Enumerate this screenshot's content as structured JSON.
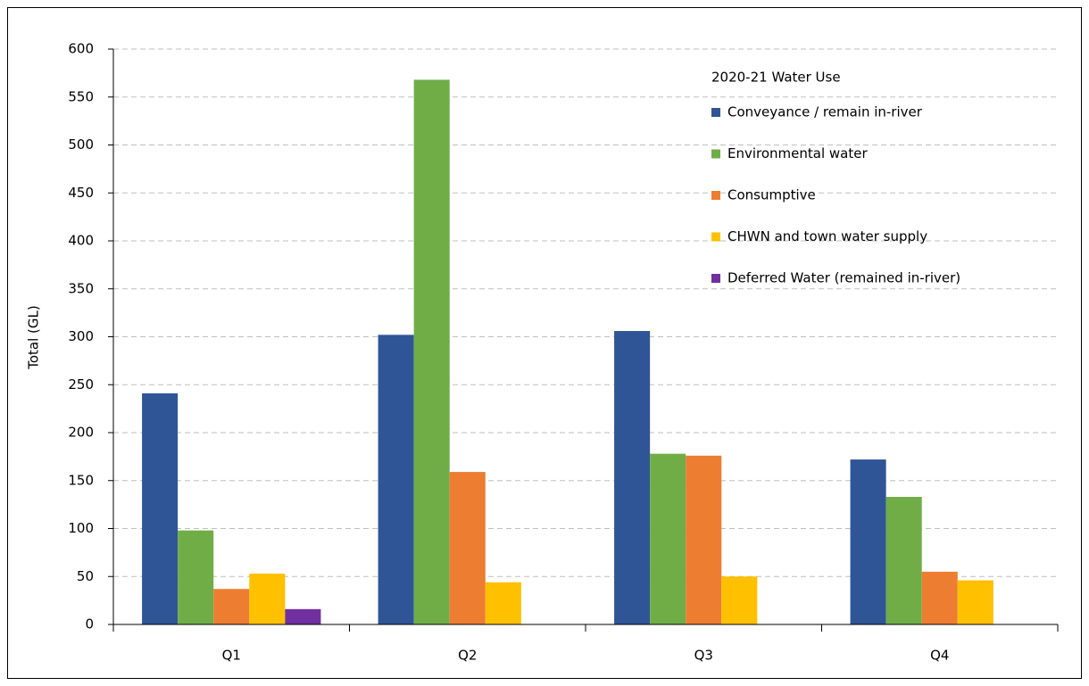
{
  "chart_data": {
    "type": "bar",
    "y_label": "Total (GL)",
    "legend_title": "2020-21 Water Use",
    "categories": [
      "Q1",
      "Q2",
      "Q3",
      "Q4"
    ],
    "series": [
      {
        "name": "Conveyance / remain in-river",
        "color": "#2f5597",
        "values": [
          241,
          302,
          306,
          172
        ]
      },
      {
        "name": "Environmental water",
        "color": "#70ad47",
        "values": [
          98,
          568,
          178,
          133
        ]
      },
      {
        "name": "Consumptive",
        "color": "#ed7d31",
        "values": [
          37,
          159,
          176,
          55
        ]
      },
      {
        "name": "CHWN and town water supply",
        "color": "#ffc000",
        "values": [
          53,
          44,
          50,
          46
        ]
      },
      {
        "name": "Deferred Water (remained in-river)",
        "color": "#7030a0",
        "values": [
          16,
          0,
          0,
          0
        ]
      }
    ],
    "ylim": [
      0,
      600
    ],
    "yticks": [
      0,
      50,
      100,
      150,
      200,
      250,
      300,
      350,
      400,
      450,
      500,
      550,
      600
    ],
    "grid": true
  }
}
